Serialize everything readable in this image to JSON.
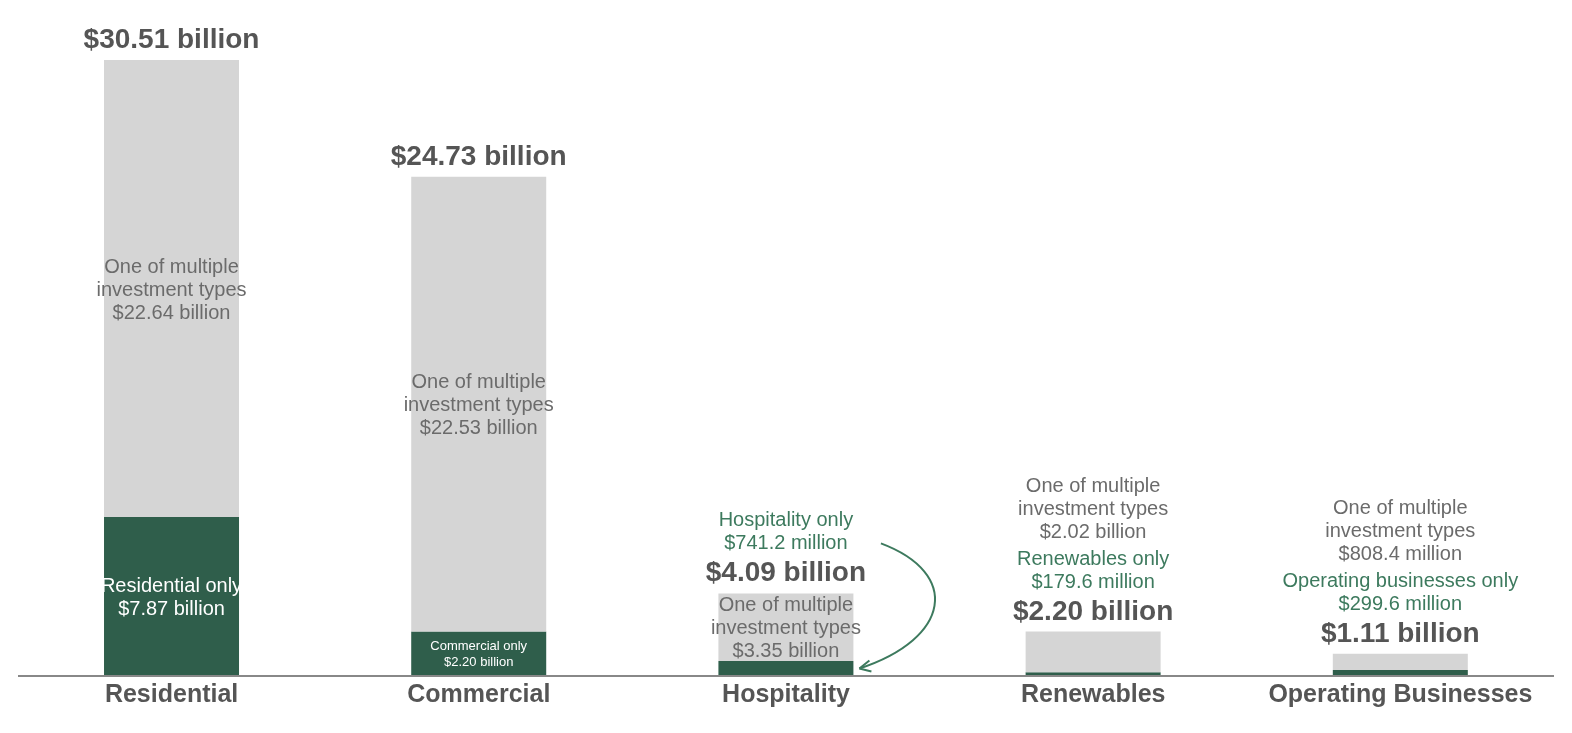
{
  "chart_data": {
    "type": "bar",
    "stacked": true,
    "categories": [
      "Residential",
      "Commercial",
      "Hospitality",
      "Renewables",
      "Operating Businesses"
    ],
    "series": [
      {
        "color": "#2f5e4b",
        "values": [
          7.87,
          2.2,
          0.7412,
          0.1796,
          0.2996
        ],
        "value_labels": [
          "$7.87 billion",
          "$2.20 billion",
          null,
          null,
          null
        ]
      },
      {
        "color": "#d5d5d5",
        "values": [
          22.64,
          22.53,
          3.35,
          2.02,
          0.8084
        ],
        "value_labels": [
          "$22.64 billion",
          "$22.53 billion",
          "$3.35 billion",
          null,
          null
        ]
      }
    ],
    "totals": [
      "$30.51 billion",
      "$24.73 billion",
      "$4.09 billion",
      "$2.20 billion",
      "$1.11 billion"
    ],
    "annotations": [
      "Residential only",
      "Commercial only",
      "Hospitality only\n$741.2 million",
      "Renewables only\n$179.6 million",
      "Operating businesses only\n$299.6 million",
      "One of multiple\ninvestment types",
      "One of multiple\ninvestment types",
      "One of multiple\ninvestment types",
      "One of multiple\ninvestment types\n$2.02 billion",
      "One of multiple\ninvestment types\n$808.4 million"
    ]
  }
}
